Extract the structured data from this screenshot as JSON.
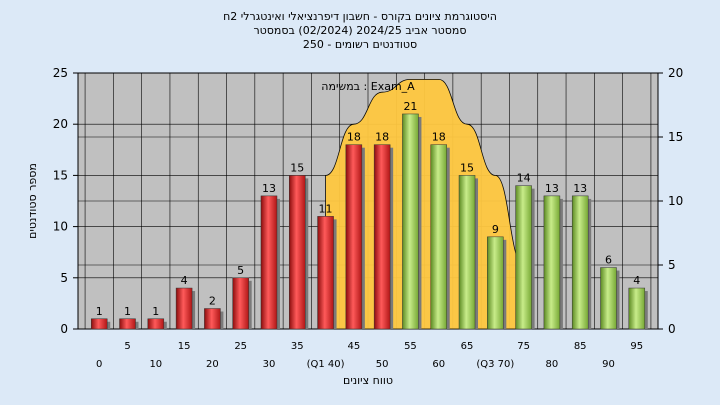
{
  "chart_data": {
    "type": "bar",
    "title_lines": [
      "היסטוגרמת ציונים בקורס - חשבון דיפרנציאלי ואינטגרלי 2ח",
      "סמסטר אביב 2024/25   (02/2024)  בסמסטר",
      "250 - סטודנטים רשומים"
    ],
    "annotation": "במשימה : Exam_A",
    "ylabel": "מספר סטודנטים",
    "xlabel": "טווח ציונים",
    "ylim": [
      0,
      25
    ],
    "y_ticks": [
      "0",
      "5",
      "10",
      "15",
      "20",
      "25"
    ],
    "y2lim": [
      0,
      20
    ],
    "y2_ticks": [
      "0",
      "5",
      "10",
      "15",
      "20"
    ],
    "categories": [
      0,
      5,
      10,
      15,
      20,
      25,
      30,
      35,
      40,
      45,
      50,
      55,
      60,
      65,
      70,
      75,
      80,
      85,
      90,
      95
    ],
    "x_tick_labels": [
      "0",
      "5",
      "10",
      "15",
      "20",
      "25",
      "30",
      "35",
      "(Q1 40)",
      "45",
      "50",
      "55",
      "60",
      "65",
      "(Q3 70)",
      "75",
      "80",
      "85",
      "90",
      "95"
    ],
    "values": [
      1,
      1,
      1,
      4,
      2,
      5,
      13,
      15,
      11,
      18,
      18,
      21,
      18,
      15,
      9,
      14,
      13,
      13,
      6,
      4
    ],
    "bar_colors": [
      "red",
      "red",
      "red",
      "red",
      "red",
      "red",
      "red",
      "red",
      "red",
      "red",
      "red",
      "green",
      "green",
      "green",
      "green",
      "green",
      "green",
      "green",
      "green",
      "green"
    ],
    "curve": {
      "type": "area",
      "x": [
        40,
        45,
        50,
        55,
        60,
        65,
        70,
        75
      ],
      "y": [
        12,
        16,
        18.5,
        19.5,
        19.5,
        16,
        12,
        5
      ]
    },
    "grid": true,
    "legend": "none"
  },
  "colors": {
    "background": "#dce9f7",
    "plot_bg": "#c0c0c0",
    "red_bar": "#e23232",
    "green_bar": "#9ccc50",
    "curve_fill": "#ffc840"
  }
}
